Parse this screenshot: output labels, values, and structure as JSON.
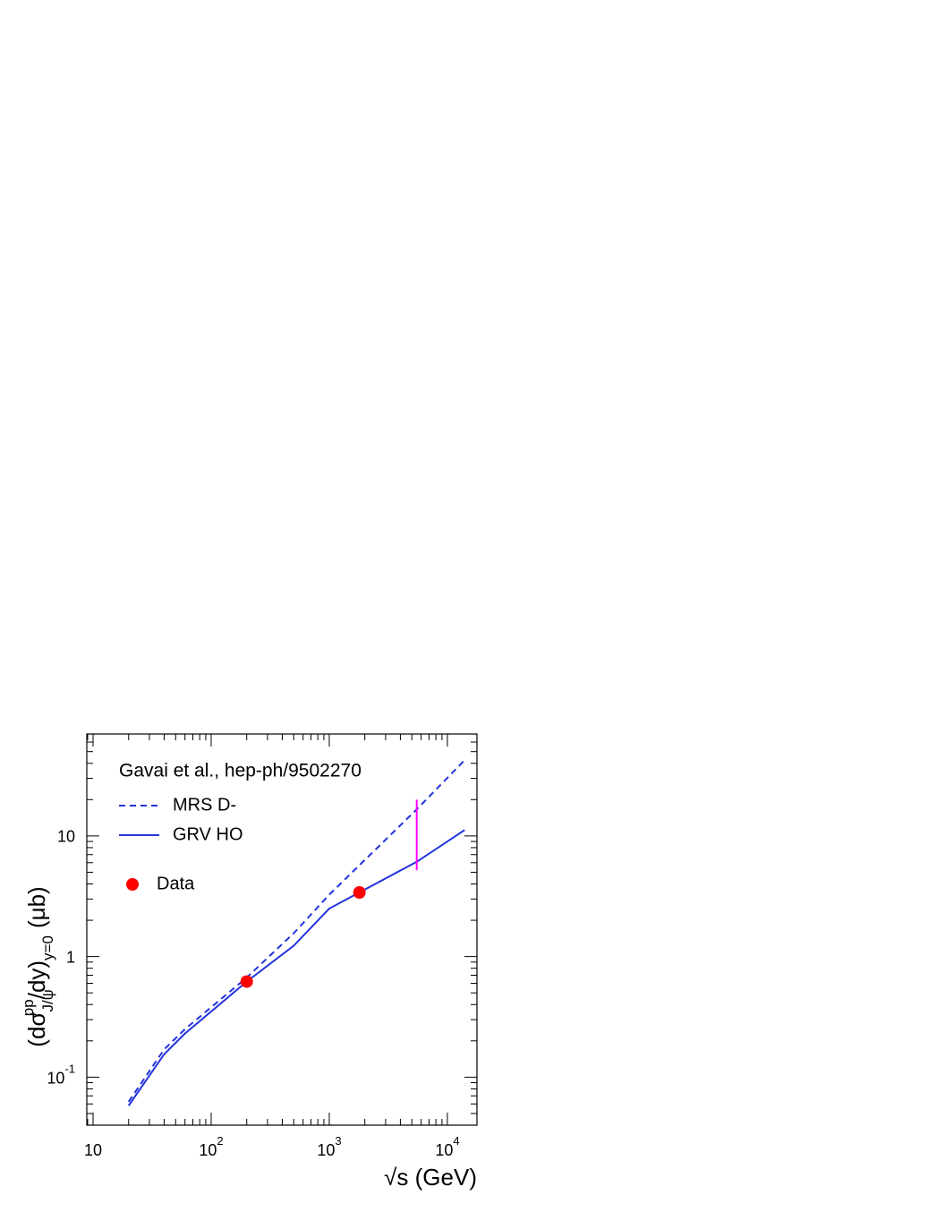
{
  "chart_data": {
    "type": "line",
    "annotation": "Gavai et al., hep-ph/9502270",
    "x_label": "√s (GeV)",
    "y_label_parts": [
      "(dσ",
      "J/ψ",
      "pp",
      "/dy)",
      "y=0",
      "(μb)"
    ],
    "log_x": true,
    "log_y": true,
    "xlim": [
      8.85,
      17800
    ],
    "ylim": [
      0.04,
      70
    ],
    "xticks": [
      10,
      {
        "value": 100,
        "label": "10^2"
      },
      {
        "value": 1000,
        "label": "10^3"
      },
      {
        "value": 10000,
        "label": "10^4"
      }
    ],
    "yticks": [
      {
        "value": 0.1,
        "label": "10^-1"
      },
      1,
      10
    ],
    "series": [
      {
        "name": "MRS D-",
        "color": "#2233dd",
        "dash": true,
        "mode": "line",
        "x": [
          20,
          40,
          60,
          200,
          500,
          1000,
          5500,
          14000
        ],
        "values": [
          0.0625,
          0.17,
          0.25,
          0.67,
          1.56,
          3.26,
          16.6,
          42.5
        ]
      },
      {
        "name": "GRV HO",
        "color": "#2233dd",
        "dash": false,
        "mode": "line",
        "x": [
          20,
          40,
          60,
          200,
          500,
          1000,
          1800,
          5500,
          14000
        ],
        "values": [
          0.058,
          0.155,
          0.23,
          0.62,
          1.23,
          2.5,
          3.4,
          6.1,
          11.2
        ]
      },
      {
        "name": "Data",
        "color": "#ff0000",
        "mode": "markers",
        "x": [
          200,
          1800
        ],
        "values": [
          0.62,
          3.4
        ]
      }
    ],
    "error_bars": [
      {
        "x": 5500,
        "low": 5.2,
        "high": 20,
        "color": "#ff00ff"
      }
    ]
  }
}
